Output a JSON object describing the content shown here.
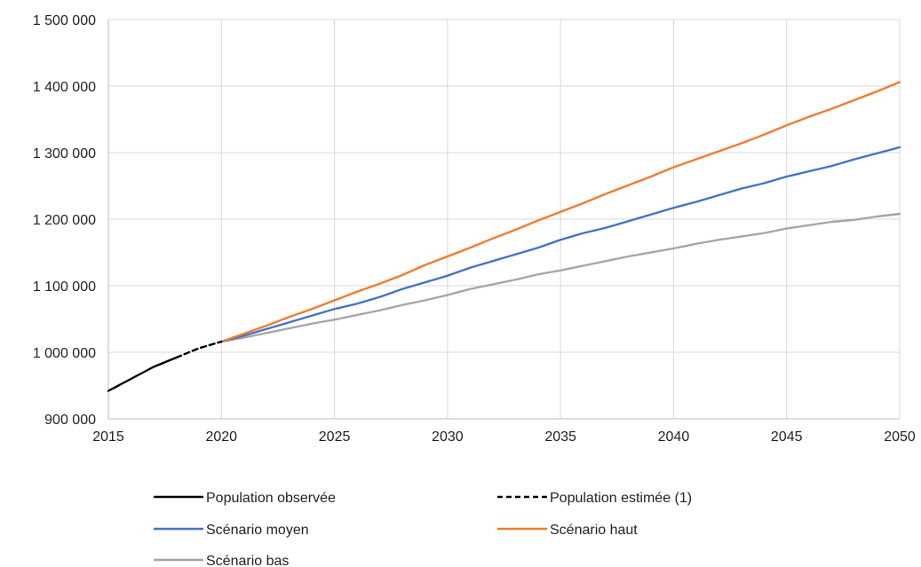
{
  "chart_data": {
    "type": "line",
    "title": "",
    "xlabel": "",
    "ylabel": "",
    "xlim": [
      2015,
      2050
    ],
    "ylim": [
      900000,
      1500000
    ],
    "x_ticks": [
      2015,
      2020,
      2025,
      2030,
      2035,
      2040,
      2045,
      2050
    ],
    "x_tick_labels": [
      "2015",
      "2020",
      "2025",
      "2030",
      "2035",
      "2040",
      "2045",
      "2050"
    ],
    "y_ticks": [
      900000,
      1000000,
      1100000,
      1200000,
      1300000,
      1400000,
      1500000
    ],
    "y_tick_labels": [
      "900 000",
      "1 000 000",
      "1 100 000",
      "1 200 000",
      "1 300 000",
      "1 400 000",
      "1 500 000"
    ],
    "grid": true,
    "legend_position": "bottom",
    "series": [
      {
        "name": "Population observée",
        "color": "#000000",
        "dash": "solid",
        "x": [
          2015,
          2016,
          2017,
          2018
        ],
        "y": [
          942000,
          960000,
          978000,
          992000
        ]
      },
      {
        "name": "Population estimée (1)",
        "color": "#000000",
        "dash": "dashed",
        "x": [
          2018,
          2019,
          2020
        ],
        "y": [
          992000,
          1006000,
          1016000
        ]
      },
      {
        "name": "Scénario moyen",
        "color": "#4472c4",
        "dash": "solid",
        "x": [
          2020,
          2021,
          2022,
          2023,
          2024,
          2025,
          2026,
          2027,
          2028,
          2029,
          2030,
          2031,
          2032,
          2033,
          2034,
          2035,
          2036,
          2037,
          2038,
          2039,
          2040,
          2041,
          2042,
          2043,
          2044,
          2045,
          2046,
          2047,
          2048,
          2049,
          2050
        ],
        "y": [
          1016000,
          1025000,
          1035000,
          1045000,
          1055000,
          1065000,
          1073000,
          1083000,
          1095000,
          1105000,
          1115000,
          1127000,
          1137000,
          1147000,
          1157000,
          1169000,
          1179000,
          1187000,
          1197000,
          1207000,
          1217000,
          1226000,
          1236000,
          1246000,
          1254000,
          1264000,
          1272000,
          1280000,
          1290000,
          1299000,
          1308000
        ]
      },
      {
        "name": "Scénario haut",
        "color": "#ed7d31",
        "dash": "solid",
        "x": [
          2020,
          2021,
          2022,
          2023,
          2024,
          2025,
          2026,
          2027,
          2028,
          2029,
          2030,
          2031,
          2032,
          2033,
          2034,
          2035,
          2036,
          2037,
          2038,
          2039,
          2040,
          2041,
          2042,
          2043,
          2044,
          2045,
          2046,
          2047,
          2048,
          2049,
          2050
        ],
        "y": [
          1016000,
          1028000,
          1040000,
          1053000,
          1065000,
          1078000,
          1091000,
          1103000,
          1116000,
          1131000,
          1144000,
          1157000,
          1171000,
          1184000,
          1198000,
          1211000,
          1224000,
          1238000,
          1251000,
          1264000,
          1278000,
          1290000,
          1302000,
          1314000,
          1327000,
          1341000,
          1354000,
          1366000,
          1379000,
          1392000,
          1406000
        ]
      },
      {
        "name": "Scénario bas",
        "color": "#a5a5a5",
        "dash": "solid",
        "x": [
          2020,
          2021,
          2022,
          2023,
          2024,
          2025,
          2026,
          2027,
          2028,
          2029,
          2030,
          2031,
          2032,
          2033,
          2034,
          2035,
          2036,
          2037,
          2038,
          2039,
          2040,
          2041,
          2042,
          2043,
          2044,
          2045,
          2046,
          2047,
          2048,
          2049,
          2050
        ],
        "y": [
          1016000,
          1022000,
          1029000,
          1036000,
          1043000,
          1049000,
          1056000,
          1063000,
          1071000,
          1078000,
          1086000,
          1095000,
          1102000,
          1109000,
          1117000,
          1123000,
          1130000,
          1137000,
          1144000,
          1150000,
          1156000,
          1163000,
          1169000,
          1174000,
          1179000,
          1186000,
          1191000,
          1196000,
          1199000,
          1204000,
          1208000
        ]
      }
    ]
  }
}
